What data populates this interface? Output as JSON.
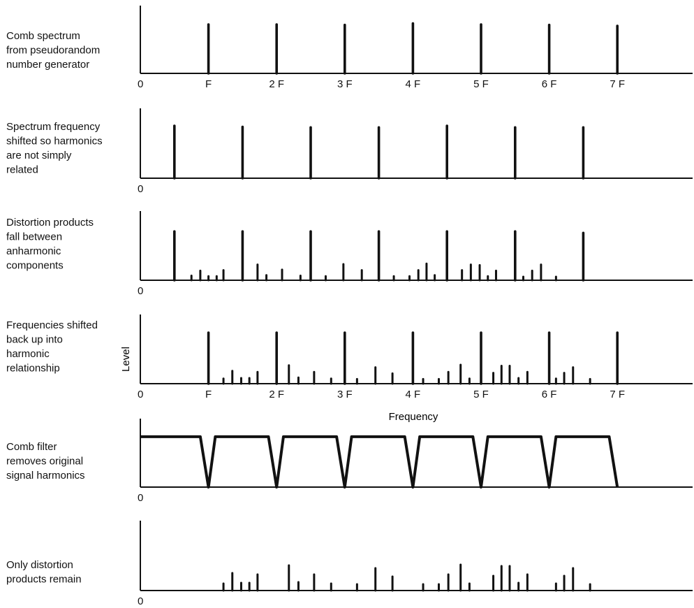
{
  "figure": {
    "zero_label": "0",
    "tick_labels": [
      "F",
      "2 F",
      "3 F",
      "4 F",
      "5 F",
      "6 F",
      "7 F"
    ],
    "y_axis_label": "Level",
    "x_axis_label": "Frequency",
    "ink_color": "#111111"
  },
  "panels": [
    {
      "id": "comb-spectrum",
      "caption": [
        "Comb spectrum",
        "from pseudorandom",
        "number generator"
      ],
      "show_ticks": true,
      "lines": [
        {
          "f": 1,
          "level": 1.0
        },
        {
          "f": 2,
          "level": 1.0
        },
        {
          "f": 3,
          "level": 0.99
        },
        {
          "f": 4,
          "level": 1.02
        },
        {
          "f": 5,
          "level": 1.0
        },
        {
          "f": 6,
          "level": 0.99
        },
        {
          "f": 7,
          "level": 0.97
        }
      ]
    },
    {
      "id": "shifted-spectrum",
      "caption": [
        "Spectrum frequency",
        "shifted so harmonics",
        "are not simply",
        "related"
      ],
      "show_ticks": false,
      "lines": [
        {
          "f": 0.5,
          "level": 1.0
        },
        {
          "f": 1.5,
          "level": 0.98
        },
        {
          "f": 2.5,
          "level": 0.97
        },
        {
          "f": 3.5,
          "level": 0.97
        },
        {
          "f": 4.5,
          "level": 1.0
        },
        {
          "f": 5.5,
          "level": 0.97
        },
        {
          "f": 6.5,
          "level": 0.97
        }
      ]
    },
    {
      "id": "distortion-products",
      "caption": [
        "Distortion products",
        "fall between",
        "anharmonic",
        "components"
      ],
      "show_ticks": false,
      "lines": [
        {
          "f": 0.5,
          "level": 0.97
        },
        {
          "f": 1.5,
          "level": 0.97
        },
        {
          "f": 2.5,
          "level": 0.97
        },
        {
          "f": 3.5,
          "level": 0.97
        },
        {
          "f": 4.5,
          "level": 0.97
        },
        {
          "f": 5.5,
          "level": 0.97
        },
        {
          "f": 6.5,
          "level": 0.94
        },
        {
          "f": 0.75,
          "level": 0.09
        },
        {
          "f": 0.88,
          "level": 0.19
        },
        {
          "f": 1.0,
          "level": 0.08
        },
        {
          "f": 1.12,
          "level": 0.08
        },
        {
          "f": 1.22,
          "level": 0.2
        },
        {
          "f": 1.72,
          "level": 0.31
        },
        {
          "f": 1.85,
          "level": 0.1
        },
        {
          "f": 2.08,
          "level": 0.21
        },
        {
          "f": 2.35,
          "level": 0.09
        },
        {
          "f": 2.72,
          "level": 0.08
        },
        {
          "f": 2.98,
          "level": 0.32
        },
        {
          "f": 3.25,
          "level": 0.2
        },
        {
          "f": 3.72,
          "level": 0.08
        },
        {
          "f": 3.95,
          "level": 0.08
        },
        {
          "f": 4.08,
          "level": 0.2
        },
        {
          "f": 4.2,
          "level": 0.33
        },
        {
          "f": 4.32,
          "level": 0.1
        },
        {
          "f": 4.72,
          "level": 0.2
        },
        {
          "f": 4.85,
          "level": 0.31
        },
        {
          "f": 4.98,
          "level": 0.3
        },
        {
          "f": 5.1,
          "level": 0.08
        },
        {
          "f": 5.22,
          "level": 0.19
        },
        {
          "f": 5.62,
          "level": 0.07
        },
        {
          "f": 5.75,
          "level": 0.19
        },
        {
          "f": 5.88,
          "level": 0.31
        },
        {
          "f": 6.1,
          "level": 0.07
        }
      ]
    },
    {
      "id": "shifted-back",
      "caption": [
        "Frequencies shifted",
        "back up into",
        "harmonic",
        "relationship"
      ],
      "show_ticks": true,
      "lines": [
        {
          "f": 1,
          "level": 1.0
        },
        {
          "f": 2,
          "level": 1.0
        },
        {
          "f": 3,
          "level": 1.0
        },
        {
          "f": 4,
          "level": 1.0
        },
        {
          "f": 5,
          "level": 1.0
        },
        {
          "f": 6,
          "level": 1.0
        },
        {
          "f": 7,
          "level": 1.0
        },
        {
          "f": 1.22,
          "level": 0.1
        },
        {
          "f": 1.35,
          "level": 0.25
        },
        {
          "f": 1.48,
          "level": 0.11
        },
        {
          "f": 1.6,
          "level": 0.11
        },
        {
          "f": 1.72,
          "level": 0.23
        },
        {
          "f": 2.18,
          "level": 0.36
        },
        {
          "f": 2.32,
          "level": 0.12
        },
        {
          "f": 2.55,
          "level": 0.23
        },
        {
          "f": 2.8,
          "level": 0.1
        },
        {
          "f": 3.18,
          "level": 0.09
        },
        {
          "f": 3.45,
          "level": 0.32
        },
        {
          "f": 3.7,
          "level": 0.2
        },
        {
          "f": 4.15,
          "level": 0.09
        },
        {
          "f": 4.38,
          "level": 0.09
        },
        {
          "f": 4.52,
          "level": 0.23
        },
        {
          "f": 4.7,
          "level": 0.37
        },
        {
          "f": 4.83,
          "level": 0.1
        },
        {
          "f": 5.18,
          "level": 0.21
        },
        {
          "f": 5.3,
          "level": 0.35
        },
        {
          "f": 5.42,
          "level": 0.35
        },
        {
          "f": 5.55,
          "level": 0.11
        },
        {
          "f": 5.68,
          "level": 0.23
        },
        {
          "f": 6.1,
          "level": 0.1
        },
        {
          "f": 6.22,
          "level": 0.21
        },
        {
          "f": 6.35,
          "level": 0.32
        },
        {
          "f": 6.6,
          "level": 0.09
        }
      ]
    },
    {
      "id": "comb-filter",
      "caption": [
        "Comb filter",
        "removes original",
        "signal harmonics"
      ],
      "show_ticks": false,
      "filter": {
        "notches_at": [
          1,
          2,
          3,
          4,
          5,
          6,
          7
        ],
        "passband_level": 0.88,
        "notch_level": 0.0,
        "notch_half_width": 0.12,
        "edge_top_offset": 0.1
      },
      "lines": []
    },
    {
      "id": "distortion-remaining",
      "caption": [
        "Only distortion",
        "products remain"
      ],
      "show_ticks": false,
      "lines": [
        {
          "f": 1.22,
          "level": 0.1
        },
        {
          "f": 1.35,
          "level": 0.25
        },
        {
          "f": 1.48,
          "level": 0.11
        },
        {
          "f": 1.6,
          "level": 0.11
        },
        {
          "f": 1.72,
          "level": 0.23
        },
        {
          "f": 2.18,
          "level": 0.36
        },
        {
          "f": 2.32,
          "level": 0.12
        },
        {
          "f": 2.55,
          "level": 0.23
        },
        {
          "f": 2.8,
          "level": 0.1
        },
        {
          "f": 3.18,
          "level": 0.09
        },
        {
          "f": 3.45,
          "level": 0.32
        },
        {
          "f": 3.7,
          "level": 0.2
        },
        {
          "f": 4.15,
          "level": 0.09
        },
        {
          "f": 4.38,
          "level": 0.09
        },
        {
          "f": 4.52,
          "level": 0.23
        },
        {
          "f": 4.7,
          "level": 0.37
        },
        {
          "f": 4.83,
          "level": 0.1
        },
        {
          "f": 5.18,
          "level": 0.21
        },
        {
          "f": 5.3,
          "level": 0.35
        },
        {
          "f": 5.42,
          "level": 0.35
        },
        {
          "f": 5.55,
          "level": 0.11
        },
        {
          "f": 5.68,
          "level": 0.23
        },
        {
          "f": 6.1,
          "level": 0.1
        },
        {
          "f": 6.22,
          "level": 0.21
        },
        {
          "f": 6.35,
          "level": 0.32
        },
        {
          "f": 6.6,
          "level": 0.09
        }
      ]
    }
  ]
}
